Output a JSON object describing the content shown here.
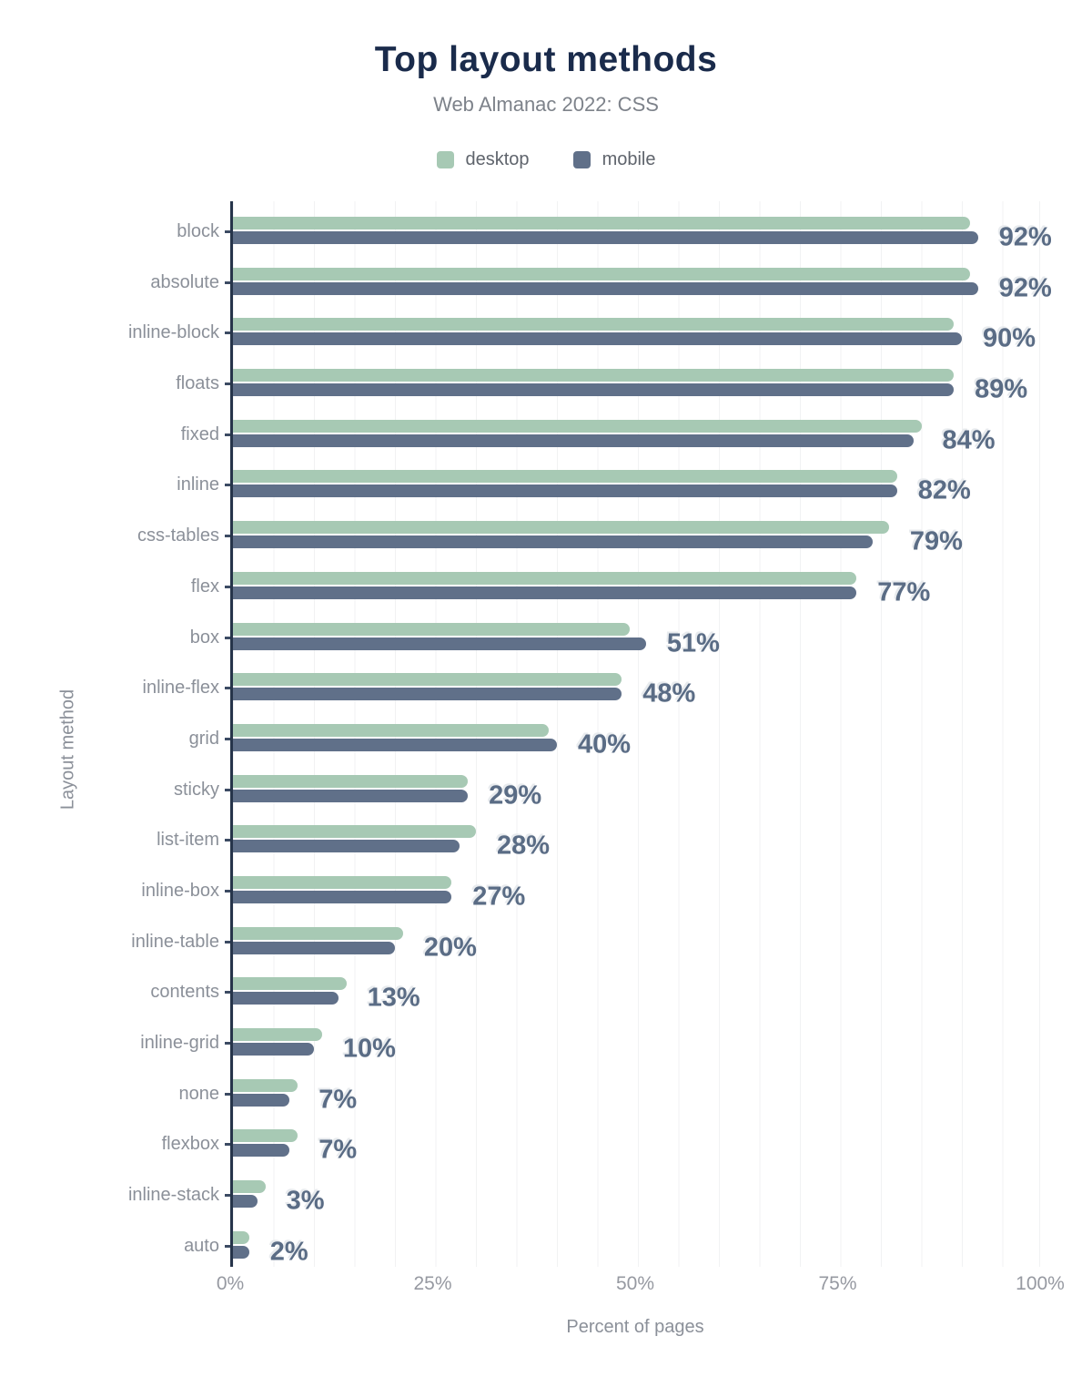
{
  "header": {
    "title": "Top layout methods",
    "subtitle": "Web Almanac 2022: CSS"
  },
  "legend": {
    "items": [
      {
        "label": "desktop",
        "color": "#a7c9b4"
      },
      {
        "label": "mobile",
        "color": "#607089"
      }
    ]
  },
  "colors": {
    "title": "#1a2b4b",
    "subtitle": "#7d828a",
    "legend_text": "#5f646c",
    "category_label": "#8b9099",
    "value_label": "#5a6c85",
    "tick_label": "#9699a1",
    "axis_line": "#26344a",
    "gridline": "#f1f2f3",
    "desktop_bar": "#a7c9b4",
    "mobile_bar": "#607089"
  },
  "chart_data": {
    "type": "bar",
    "orientation": "horizontal",
    "title": "Top layout methods",
    "subtitle": "Web Almanac 2022: CSS",
    "xlabel": "Percent of pages",
    "ylabel": "Layout method",
    "xlim": [
      0,
      100
    ],
    "grid": "vertical minor gridlines every 5%",
    "legend_position": "top-center",
    "xticks": [
      {
        "label": "0%",
        "value": 0
      },
      {
        "label": "25%",
        "value": 25
      },
      {
        "label": "50%",
        "value": 50
      },
      {
        "label": "75%",
        "value": 75
      },
      {
        "label": "100%",
        "value": 100
      }
    ],
    "categories": [
      "block",
      "absolute",
      "inline-block",
      "floats",
      "fixed",
      "inline",
      "css-tables",
      "flex",
      "box",
      "inline-flex",
      "grid",
      "sticky",
      "list-item",
      "inline-box",
      "inline-table",
      "contents",
      "inline-grid",
      "none",
      "flexbox",
      "inline-stack",
      "auto"
    ],
    "series": [
      {
        "name": "desktop",
        "values": [
          91,
          91,
          89,
          89,
          85,
          82,
          81,
          77,
          49,
          48,
          39,
          29,
          30,
          27,
          21,
          14,
          11,
          8,
          8,
          4,
          2
        ]
      },
      {
        "name": "mobile",
        "values": [
          92,
          92,
          90,
          89,
          84,
          82,
          79,
          77,
          51,
          48,
          40,
          29,
          28,
          27,
          20,
          13,
          10,
          7,
          7,
          3,
          2
        ]
      }
    ],
    "value_labels": [
      "92%",
      "92%",
      "90%",
      "89%",
      "84%",
      "82%",
      "79%",
      "77%",
      "51%",
      "48%",
      "40%",
      "29%",
      "28%",
      "27%",
      "20%",
      "13%",
      "10%",
      "7%",
      "7%",
      "3%",
      "2%"
    ]
  },
  "x_axis": {
    "title": "Percent of pages"
  },
  "y_axis": {
    "title": "Layout method"
  }
}
